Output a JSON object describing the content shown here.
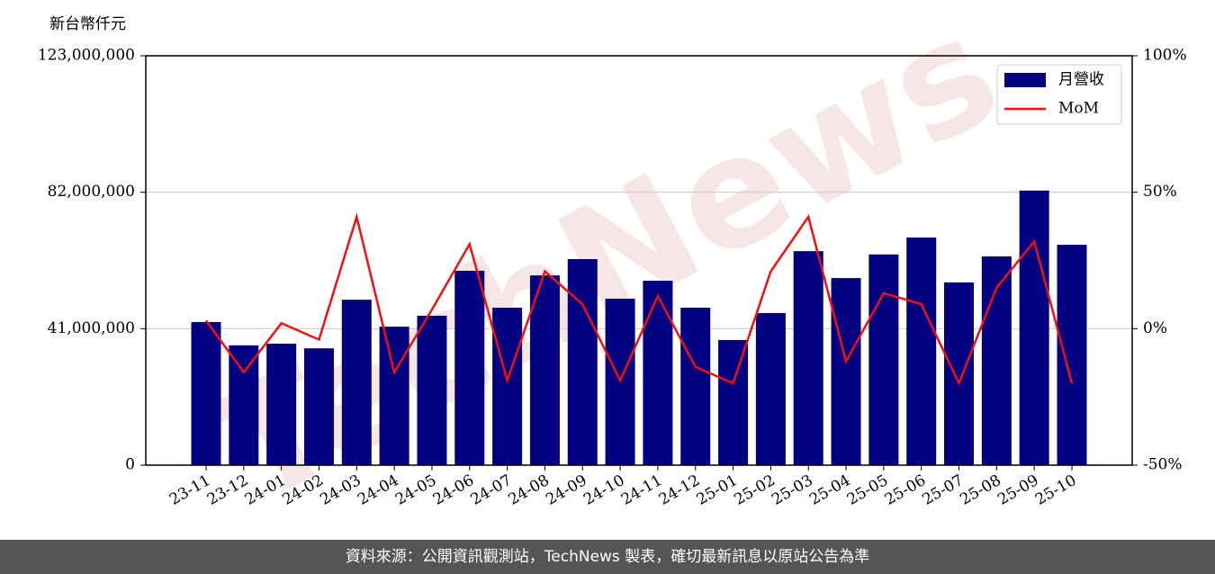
{
  "chart_data": {
    "type": "bar_line",
    "y_label": "新台幣仟元",
    "watermark": "TechNews",
    "categories": [
      "23-11",
      "23-12",
      "24-01",
      "24-02",
      "24-03",
      "24-04",
      "24-05",
      "24-06",
      "24-07",
      "24-08",
      "24-09",
      "24-10",
      "24-11",
      "24-12",
      "25-01",
      "25-02",
      "25-03",
      "25-04",
      "25-05",
      "25-06",
      "25-07",
      "25-08",
      "25-09",
      "25-10"
    ],
    "series": [
      {
        "name": "月營收",
        "color": "#000080",
        "values": [
          43000000,
          36000000,
          36500000,
          35100000,
          49700000,
          41600000,
          44900000,
          58400000,
          47300000,
          57000000,
          61900000,
          50000000,
          55400000,
          47300000,
          37600000,
          45700000,
          64300000,
          56200000,
          63300000,
          68400000,
          54900000,
          62700000,
          82500000,
          66200000
        ]
      },
      {
        "name": "MoM",
        "color": "#ee1111",
        "axis": "y2",
        "values": [
          3,
          -16,
          2,
          -4,
          41,
          -16,
          7,
          31,
          -19,
          21,
          9,
          -19,
          12,
          -14,
          -20,
          21,
          41,
          -12,
          13,
          9,
          -20,
          15,
          32,
          -20
        ]
      }
    ],
    "ylim": [
      0,
      123000000
    ],
    "yticks": [
      0,
      {
        "value": 41000000,
        "label": "41,000,000"
      },
      {
        "value": 82000000,
        "label": "82,000,000"
      },
      {
        "value": 123000000,
        "label": "123,000,000"
      }
    ],
    "y2lim": [
      -50,
      100
    ],
    "y2ticks": [
      {
        "value": -50,
        "label": "-50%"
      },
      {
        "value": 0,
        "label": "0%"
      },
      {
        "value": 50,
        "label": "50%"
      },
      {
        "value": 100,
        "label": "100%"
      }
    ],
    "grid": true,
    "legend": "upper right",
    "footer": "資料來源：公開資訊觀測站，TechNews 製表，確切最新訊息以原站公告為準"
  }
}
